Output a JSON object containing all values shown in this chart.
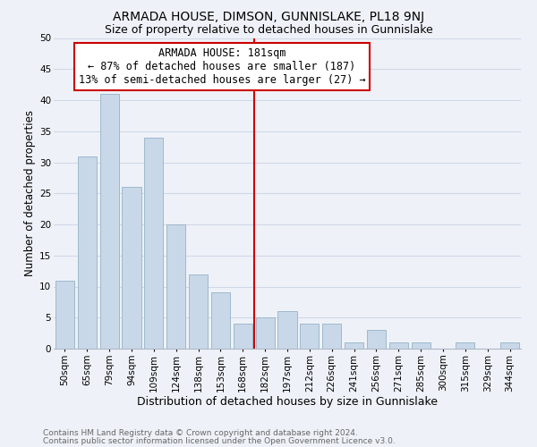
{
  "title": "ARMADA HOUSE, DIMSON, GUNNISLAKE, PL18 9NJ",
  "subtitle": "Size of property relative to detached houses in Gunnislake",
  "xlabel": "Distribution of detached houses by size in Gunnislake",
  "ylabel": "Number of detached properties",
  "bar_labels": [
    "50sqm",
    "65sqm",
    "79sqm",
    "94sqm",
    "109sqm",
    "124sqm",
    "138sqm",
    "153sqm",
    "168sqm",
    "182sqm",
    "197sqm",
    "212sqm",
    "226sqm",
    "241sqm",
    "256sqm",
    "271sqm",
    "285sqm",
    "300sqm",
    "315sqm",
    "329sqm",
    "344sqm"
  ],
  "bar_values": [
    11,
    31,
    41,
    26,
    34,
    20,
    12,
    9,
    4,
    5,
    6,
    4,
    4,
    1,
    3,
    1,
    1,
    0,
    1,
    0,
    1
  ],
  "bar_color": "#c8d8e8",
  "bar_edge_color": "#a0b8cc",
  "vline_x": 8.5,
  "vline_color": "#cc0000",
  "annotation_text": "ARMADA HOUSE: 181sqm\n← 87% of detached houses are smaller (187)\n13% of semi-detached houses are larger (27) →",
  "annotation_box_color": "#ffffff",
  "annotation_box_edge": "#cc0000",
  "ylim": [
    0,
    50
  ],
  "yticks": [
    0,
    5,
    10,
    15,
    20,
    25,
    30,
    35,
    40,
    45,
    50
  ],
  "grid_color": "#d0d8e8",
  "background_color": "#eef2f8",
  "footer_line1": "Contains HM Land Registry data © Crown copyright and database right 2024.",
  "footer_line2": "Contains public sector information licensed under the Open Government Licence v3.0.",
  "title_fontsize": 10,
  "subtitle_fontsize": 9,
  "xlabel_fontsize": 9,
  "ylabel_fontsize": 8.5,
  "tick_fontsize": 7.5,
  "annotation_fontsize": 8.5,
  "footer_fontsize": 6.5
}
